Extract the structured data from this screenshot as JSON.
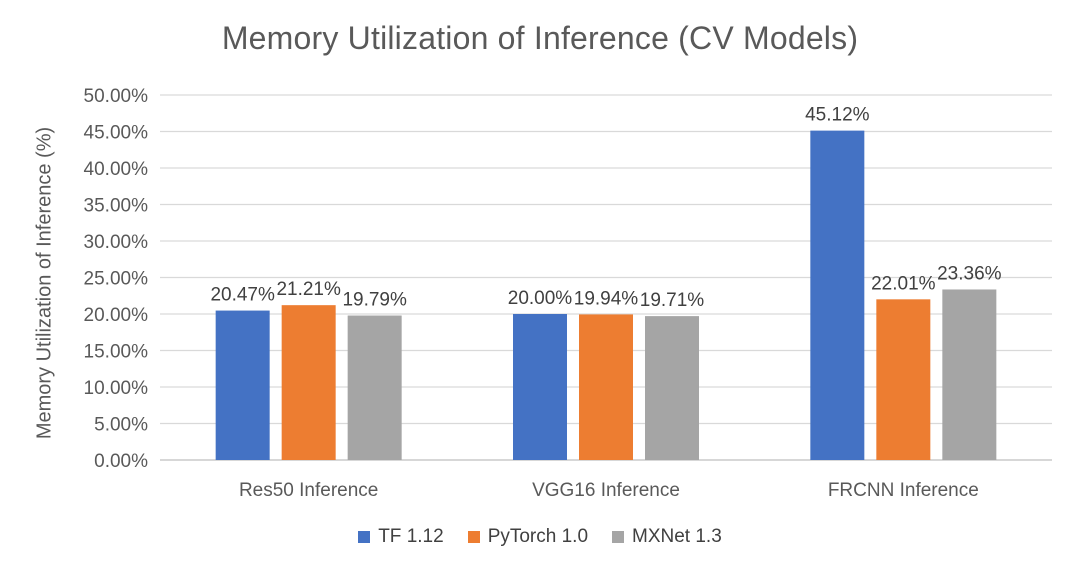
{
  "chart_data": {
    "type": "bar",
    "title": "Memory Utilization of Inference (CV Models)",
    "xlabel": "",
    "ylabel": "Memory Utilization of Inference (%)",
    "ylim": [
      0,
      50
    ],
    "y_ticks": [
      "0.00%",
      "5.00%",
      "10.00%",
      "15.00%",
      "20.00%",
      "25.00%",
      "30.00%",
      "35.00%",
      "40.00%",
      "45.00%",
      "50.00%"
    ],
    "grid": true,
    "legend_position": "bottom",
    "categories": [
      "Res50 Inference",
      "VGG16 Inference",
      "FRCNN Inference"
    ],
    "series": [
      {
        "name": "TF 1.12",
        "color": "#4472C4",
        "values": [
          20.47,
          20.0,
          45.12
        ],
        "labels": [
          "20.47%",
          "20.00%",
          "45.12%"
        ]
      },
      {
        "name": "PyTorch 1.0",
        "color": "#ED7D31",
        "values": [
          21.21,
          19.94,
          22.01
        ],
        "labels": [
          "21.21%",
          "19.94%",
          "22.01%"
        ]
      },
      {
        "name": "MXNet 1.3",
        "color": "#A5A5A5",
        "values": [
          19.79,
          19.71,
          23.36
        ],
        "labels": [
          "19.79%",
          "19.71%",
          "23.36%"
        ]
      }
    ]
  }
}
